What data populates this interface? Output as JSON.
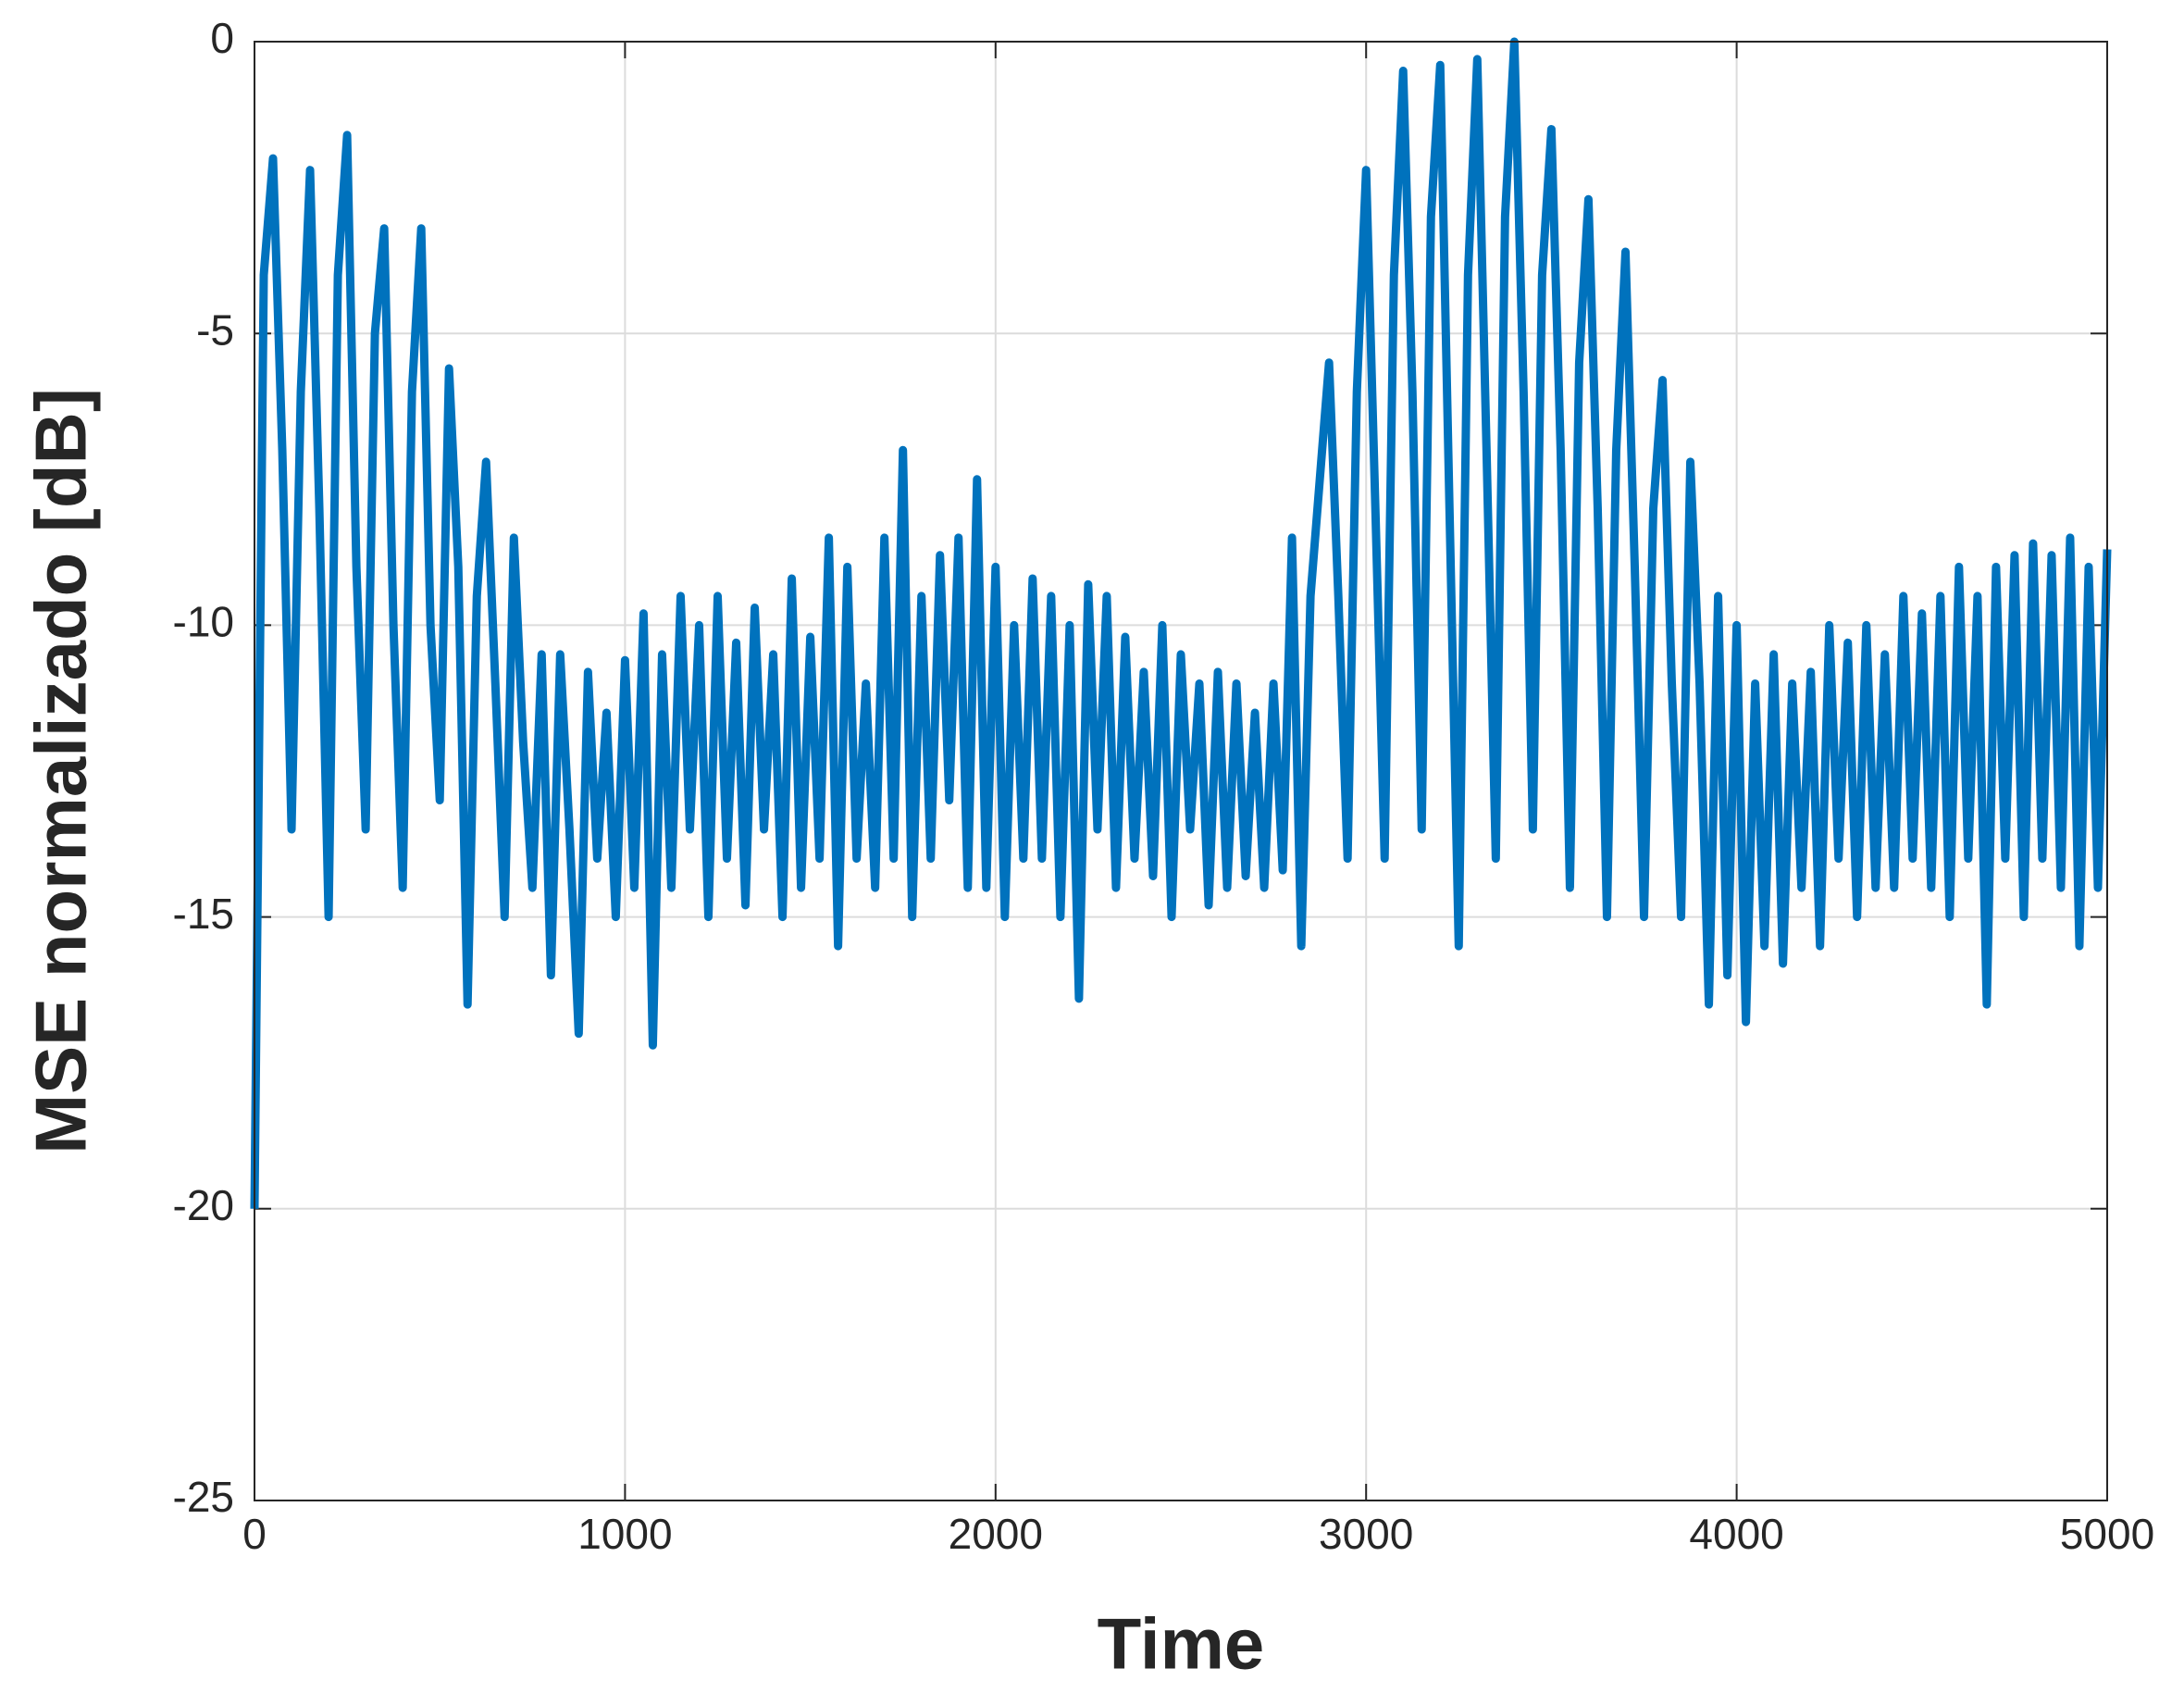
{
  "chart_data": {
    "type": "line",
    "xlabel": "Time",
    "ylabel": "MSE normalizado [dB]",
    "xlim": [
      0,
      5000
    ],
    "ylim": [
      -25,
      0
    ],
    "xticks": [
      0,
      1000,
      2000,
      3000,
      4000,
      5000
    ],
    "yticks": [
      -25,
      -20,
      -15,
      -10,
      -5,
      0
    ],
    "grid": true,
    "series": [
      {
        "color": "#0072bd",
        "x": [
          0,
          25,
          50,
          75,
          100,
          125,
          150,
          175,
          200,
          225,
          250,
          275,
          300,
          325,
          350,
          375,
          400,
          425,
          450,
          475,
          500,
          525,
          550,
          575,
          600,
          625,
          650,
          675,
          700,
          725,
          750,
          775,
          800,
          825,
          850,
          875,
          900,
          925,
          950,
          975,
          1000,
          1025,
          1050,
          1075,
          1100,
          1125,
          1150,
          1175,
          1200,
          1225,
          1250,
          1275,
          1300,
          1325,
          1350,
          1375,
          1400,
          1425,
          1450,
          1475,
          1500,
          1525,
          1550,
          1575,
          1600,
          1625,
          1650,
          1675,
          1700,
          1725,
          1750,
          1775,
          1800,
          1825,
          1850,
          1875,
          1900,
          1925,
          1950,
          1975,
          2000,
          2025,
          2050,
          2075,
          2100,
          2125,
          2150,
          2175,
          2200,
          2225,
          2250,
          2275,
          2300,
          2325,
          2350,
          2375,
          2400,
          2425,
          2450,
          2475,
          2500,
          2525,
          2550,
          2575,
          2600,
          2625,
          2650,
          2675,
          2700,
          2725,
          2750,
          2775,
          2800,
          2825,
          2850,
          2875,
          2900,
          2925,
          2950,
          2975,
          3000,
          3025,
          3050,
          3075,
          3100,
          3125,
          3150,
          3175,
          3200,
          3225,
          3250,
          3275,
          3300,
          3325,
          3350,
          3375,
          3400,
          3425,
          3450,
          3475,
          3500,
          3525,
          3550,
          3575,
          3600,
          3625,
          3650,
          3675,
          3700,
          3725,
          3750,
          3775,
          3800,
          3825,
          3850,
          3875,
          3900,
          3925,
          3950,
          3975,
          4000,
          4025,
          4050,
          4075,
          4100,
          4125,
          4150,
          4175,
          4200,
          4225,
          4250,
          4275,
          4300,
          4325,
          4350,
          4375,
          4400,
          4425,
          4450,
          4475,
          4500,
          4525,
          4550,
          4575,
          4600,
          4625,
          4650,
          4675,
          4700,
          4725,
          4750,
          4775,
          4800,
          4825,
          4850,
          4875,
          4900,
          4925,
          4950,
          4975,
          5000
        ],
        "values": [
          -20,
          -4,
          -2,
          -7,
          -13.5,
          -6,
          -2.2,
          -8,
          -15,
          -4,
          -1.6,
          -9,
          -13.5,
          -5,
          -3.2,
          -10,
          -14.5,
          -6,
          -3.2,
          -10,
          -13,
          -5.6,
          -9,
          -16.5,
          -9.5,
          -7.2,
          -11,
          -15,
          -8.5,
          -12,
          -14.5,
          -10.5,
          -16,
          -10.5,
          -13.5,
          -17,
          -10.8,
          -14,
          -11.5,
          -15,
          -10.6,
          -14.5,
          -9.8,
          -17.2,
          -10.5,
          -14.5,
          -9.5,
          -13.5,
          -10,
          -15,
          -9.5,
          -14,
          -10.3,
          -14.8,
          -9.7,
          -13.5,
          -10.5,
          -15,
          -9.2,
          -14.5,
          -10.2,
          -14,
          -8.5,
          -15.5,
          -9,
          -14,
          -11,
          -14.5,
          -8.5,
          -14,
          -7,
          -15,
          -9.5,
          -14,
          -8.8,
          -13,
          -8.5,
          -14.5,
          -7.5,
          -14.5,
          -9,
          -15,
          -10,
          -14,
          -9.2,
          -14,
          -9.5,
          -15,
          -10,
          -16.4,
          -9.3,
          -13.5,
          -9.5,
          -14.5,
          -10.2,
          -14,
          -10.8,
          -14.3,
          -10,
          -15,
          -10.5,
          -13.5,
          -11,
          -14.8,
          -10.8,
          -14.5,
          -11,
          -14.3,
          -11.5,
          -14.5,
          -11,
          -14.2,
          -8.5,
          -15.5,
          -9.5,
          -7.5,
          -5.5,
          -9.5,
          -14,
          -6,
          -2.2,
          -8,
          -14,
          -4,
          -0.5,
          -6,
          -13.5,
          -3,
          -0.4,
          -8,
          -15.5,
          -4,
          -0.3,
          -7,
          -14,
          -3,
          0,
          -6,
          -13.5,
          -4,
          -1.5,
          -7,
          -14.5,
          -5.5,
          -2.7,
          -8,
          -15,
          -7,
          -3.6,
          -9,
          -15,
          -8,
          -5.8,
          -11,
          -15,
          -7.2,
          -11,
          -16.5,
          -9.5,
          -16,
          -10,
          -16.8,
          -11,
          -15.5,
          -10.5,
          -15.8,
          -11,
          -14.5,
          -10.8,
          -15.5,
          -10,
          -14,
          -10.3,
          -15,
          -10,
          -14.5,
          -10.5,
          -14.5,
          -9.5,
          -14,
          -9.8,
          -14.5,
          -9.5,
          -15,
          -9,
          -14,
          -9.5,
          -16.5,
          -9,
          -14,
          -8.8,
          -15,
          -8.6,
          -14,
          -8.8,
          -14.5,
          -8.5,
          -15.5,
          -9,
          -14.5,
          -8.7
        ]
      }
    ]
  }
}
